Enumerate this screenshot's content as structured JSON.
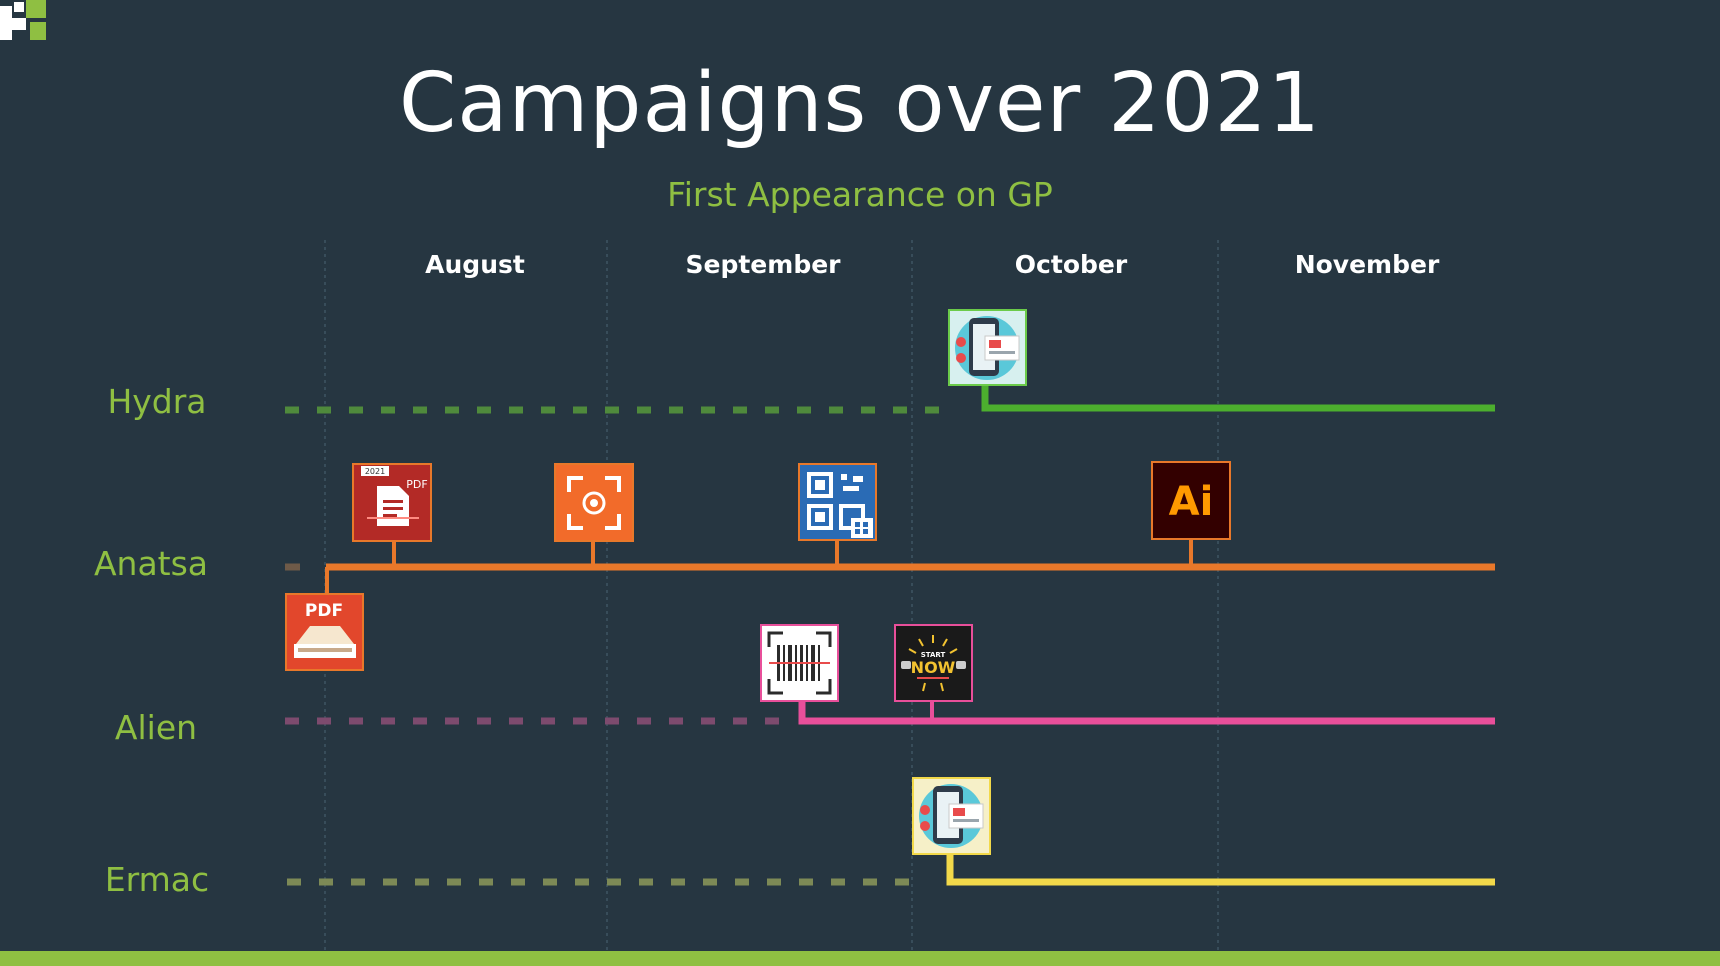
{
  "title": "Campaigns over 2021",
  "subtitle": "First Appearance on GP",
  "months": [
    "August",
    "September",
    "October",
    "November"
  ],
  "families": [
    {
      "name": "Hydra",
      "color": "#4caf2e",
      "dash_color": "#4f8a3c"
    },
    {
      "name": "Anatsa",
      "color": "#e8782a",
      "dash_color": "#6e5a48"
    },
    {
      "name": "Alien",
      "color": "#e84f9a",
      "dash_color": "#7d4b6e"
    },
    {
      "name": "Ermac",
      "color": "#f2d94a",
      "dash_color": "#7d8a56"
    }
  ],
  "icons": [
    {
      "name": "dropper-app-icon",
      "family": "Hydra"
    },
    {
      "name": "pdf-document-2021-icon",
      "family": "Anatsa",
      "text": "PDF",
      "badge": "2021"
    },
    {
      "name": "scanner-focus-icon",
      "family": "Anatsa"
    },
    {
      "name": "qr-code-scanner-icon",
      "family": "Anatsa"
    },
    {
      "name": "adobe-illustrator-icon",
      "family": "Anatsa",
      "text": "Ai"
    },
    {
      "name": "pdf-scanner-icon",
      "family": "Anatsa",
      "text": "PDF"
    },
    {
      "name": "barcode-scanner-icon",
      "family": "Alien"
    },
    {
      "name": "start-now-fitness-icon",
      "family": "Alien",
      "text": "NOW",
      "badge": "START"
    },
    {
      "name": "dropper-app-icon",
      "family": "Ermac"
    }
  ],
  "colors": {
    "background": "#263641",
    "accent": "#8fbf42",
    "grid": "#3f5562"
  },
  "logo_icon": "company-logo-icon"
}
